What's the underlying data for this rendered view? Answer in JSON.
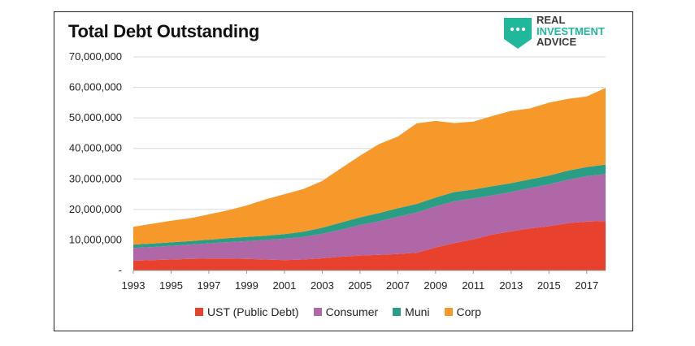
{
  "title": "Total Debt Outstanding",
  "logo": {
    "line1": "REAL",
    "line2": "INVESTMENT",
    "line3": "ADVICE",
    "icon": "chat-bubble-shield-icon",
    "colors": {
      "teal": "#1fb89a",
      "dark": "#3a3a3a"
    }
  },
  "chart_data": {
    "type": "area",
    "stacked": true,
    "x": [
      1993,
      1994,
      1995,
      1996,
      1997,
      1998,
      1999,
      2000,
      2001,
      2002,
      2003,
      2004,
      2005,
      2006,
      2007,
      2008,
      2009,
      2010,
      2011,
      2012,
      2013,
      2014,
      2015,
      2016,
      2017,
      2018
    ],
    "x_tick_labels": [
      "1993",
      "1995",
      "1997",
      "1999",
      "2001",
      "2003",
      "2005",
      "2007",
      "2009",
      "2011",
      "2013",
      "2015",
      "2017"
    ],
    "y_tick_labels": [
      "-",
      "10,000,000",
      "20,000,000",
      "30,000,000",
      "40,000,000",
      "50,000,000",
      "60,000,000",
      "70,000,000"
    ],
    "ylim": [
      0,
      70000000
    ],
    "grid": true,
    "legend_position": "bottom",
    "series": [
      {
        "name": "UST (Public Debt)",
        "color": "#e8412e",
        "values": [
          3200000,
          3400000,
          3600000,
          3800000,
          3900000,
          3900000,
          3800000,
          3600000,
          3400000,
          3600000,
          4000000,
          4500000,
          4900000,
          5100000,
          5400000,
          5800000,
          7500000,
          9000000,
          10200000,
          11800000,
          12800000,
          13800000,
          14500000,
          15500000,
          16000000,
          16200000
        ]
      },
      {
        "name": "Consumer",
        "color": "#b067a8",
        "values": [
          4200000,
          4300000,
          4500000,
          4700000,
          5000000,
          5400000,
          5800000,
          6400000,
          7000000,
          7400000,
          8000000,
          8900000,
          10000000,
          11000000,
          12200000,
          13200000,
          13500000,
          13700000,
          13400000,
          12800000,
          12900000,
          13200000,
          13700000,
          14200000,
          14900000,
          15400000
        ]
      },
      {
        "name": "Muni",
        "color": "#2a9d85",
        "values": [
          1100000,
          1100000,
          1100000,
          1100000,
          1200000,
          1300000,
          1400000,
          1400000,
          1500000,
          1700000,
          2000000,
          2300000,
          2500000,
          2700000,
          2800000,
          2800000,
          2900000,
          3000000,
          2900000,
          3000000,
          2900000,
          2900000,
          2900000,
          3000000,
          3000000,
          3100000
        ]
      },
      {
        "name": "Corp",
        "color": "#f7982a",
        "values": [
          5800000,
          6500000,
          7100000,
          7500000,
          8300000,
          9100000,
          10300000,
          11900000,
          13100000,
          14000000,
          15300000,
          17800000,
          20200000,
          22600000,
          23500000,
          26400000,
          25100000,
          22600000,
          22300000,
          23000000,
          23700000,
          23200000,
          23900000,
          23500000,
          23100000,
          25100000
        ]
      }
    ]
  }
}
